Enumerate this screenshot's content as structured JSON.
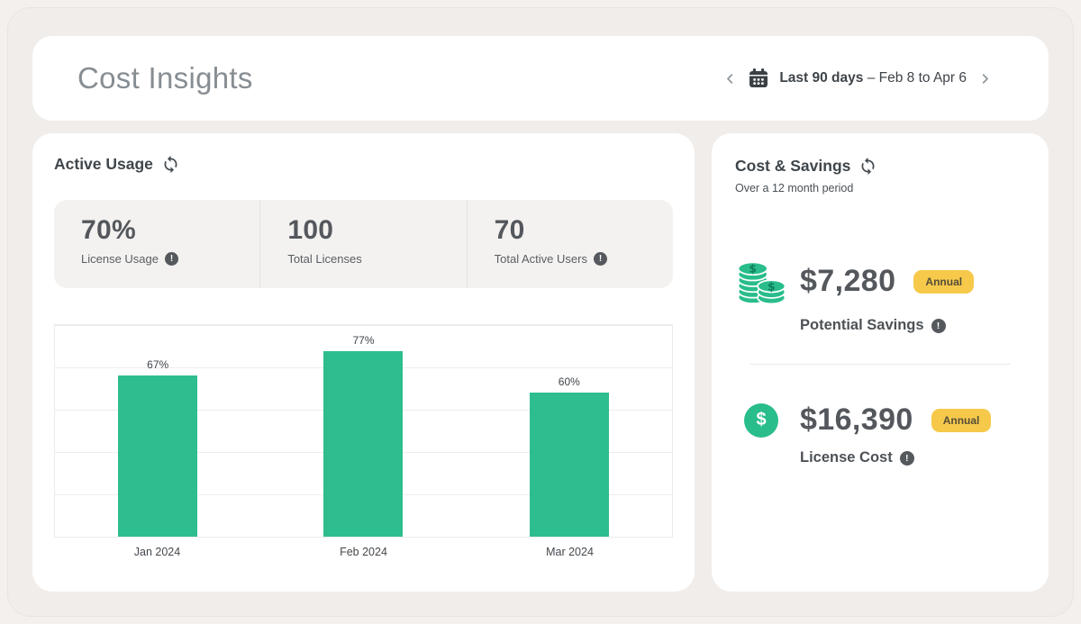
{
  "header": {
    "title": "Cost Insights",
    "date_nav": {
      "range_label": "Last 90 days",
      "range_dates": "– Feb 8 to Apr 6"
    }
  },
  "active_usage": {
    "title": "Active Usage",
    "stats": [
      {
        "value": "70%",
        "label": "License Usage",
        "has_info": true
      },
      {
        "value": "100",
        "label": "Total Licenses",
        "has_info": false
      },
      {
        "value": "70",
        "label": "Total Active Users",
        "has_info": true
      }
    ]
  },
  "chart_data": {
    "type": "bar",
    "categories": [
      "Jan 2024",
      "Feb 2024",
      "Mar 2024"
    ],
    "values": [
      67,
      77,
      60
    ],
    "value_labels": [
      "67%",
      "77%",
      "60%"
    ],
    "title": "Active Usage",
    "xlabel": "",
    "ylabel": "",
    "ylim": [
      0,
      88
    ],
    "grid": "horizontal",
    "legend": "none",
    "bar_color": "#2dbd8e"
  },
  "cost_savings": {
    "title": "Cost & Savings",
    "subtitle": "Over a 12 month period",
    "items": [
      {
        "icon": "coins-stack",
        "amount": "$7,280",
        "badge": "Annual",
        "label": "Potential Savings",
        "has_info": true
      },
      {
        "icon": "dollar-circle",
        "amount": "$16,390",
        "badge": "Annual",
        "label": "License Cost",
        "has_info": true
      }
    ]
  },
  "icons": {
    "refresh_icon": "circular sync arrows",
    "calendar_icon": "calendar grid",
    "chevron_left_icon": "‹",
    "chevron_right_icon": "›",
    "info_icon": "!",
    "coins_icon": "stacked coins with $",
    "dollar_circle_icon": "$ in green circle"
  },
  "colors": {
    "accent_green": "#2dbd8e",
    "badge_yellow": "#f6c94b",
    "page_background": "#f1edea",
    "card_background": "#ffffff",
    "text_dark": "#54585d",
    "title_gray": "#878e93"
  }
}
